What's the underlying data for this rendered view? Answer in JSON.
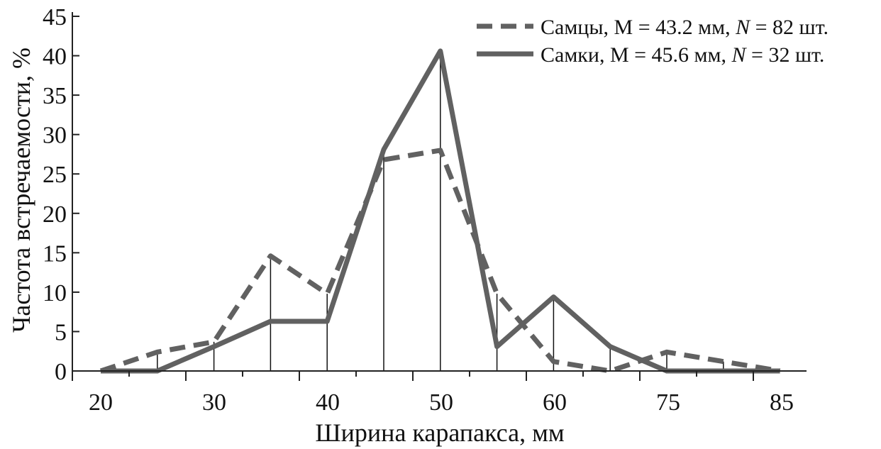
{
  "chart_data": {
    "type": "line",
    "xlabel": "Ширина карапакса, мм",
    "ylabel": "Частота встречаемости, %",
    "x_tick_labels": [
      "20",
      "30",
      "40",
      "50",
      "60",
      "75",
      "85"
    ],
    "y_ticks": [
      0,
      5,
      10,
      15,
      20,
      25,
      30,
      35,
      40,
      45
    ],
    "ylim": [
      0,
      45
    ],
    "categories": [
      "20",
      "25",
      "30",
      "35",
      "40",
      "45",
      "50",
      "55",
      "60",
      "65",
      "75",
      "80",
      "85"
    ],
    "legend_position": "top-right",
    "grid": false,
    "series": [
      {
        "name": "Самцы, M = 43.2 мм, N = 82 шт.",
        "legend": {
          "pre": "Самцы, M = 43.2 мм, ",
          "n": "N",
          "post": " = 82 шт."
        },
        "style": "dashed",
        "color": "#616161",
        "values": [
          0,
          2.4,
          3.7,
          14.6,
          9.8,
          26.8,
          28.0,
          9.8,
          1.2,
          0,
          2.4,
          1.2,
          0
        ]
      },
      {
        "name": "Самки, M = 45.6 мм, N = 32 шт.",
        "legend": {
          "pre": "Самки, M = 45.6 мм, ",
          "n": "N",
          "post": " = 32 шт."
        },
        "style": "solid",
        "color": "#616161",
        "values": [
          0,
          0,
          3.1,
          6.3,
          6.3,
          28.1,
          40.6,
          3.1,
          9.4,
          3.1,
          0,
          0,
          0
        ]
      }
    ]
  }
}
